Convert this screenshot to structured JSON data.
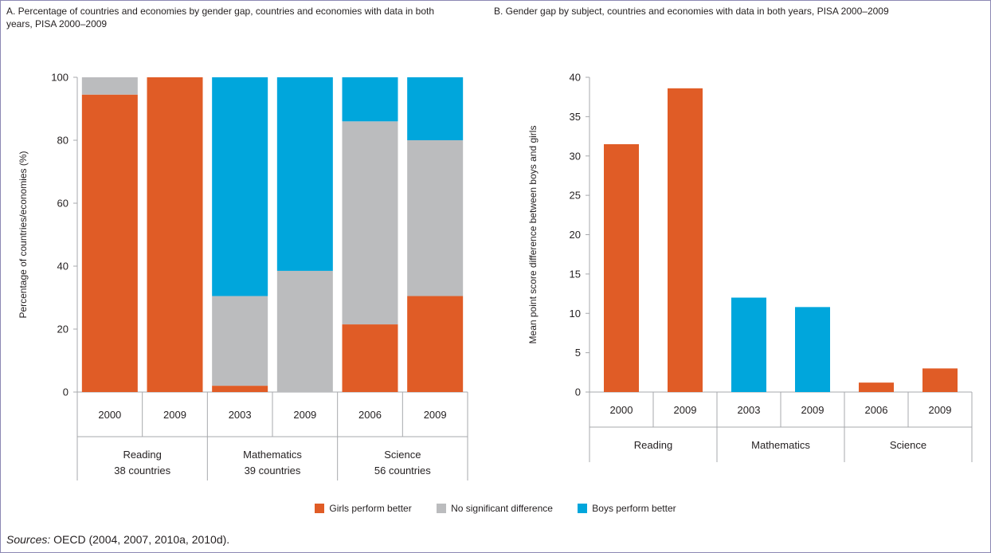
{
  "sources": {
    "label": "Sources:",
    "text": "OECD (2004, 2007, 2010a, 2010d)."
  },
  "colors": {
    "girls": "#e05c26",
    "none": "#bbbcbe",
    "boys": "#00a6dc"
  },
  "legend": [
    {
      "key": "girls",
      "label": "Girls perform better"
    },
    {
      "key": "none",
      "label": "No significant difference"
    },
    {
      "key": "boys",
      "label": "Boys perform better"
    }
  ],
  "chart_data": [
    {
      "type": "bar",
      "stacked": true,
      "title": "A. Percentage of countries and economies by gender gap, countries and economies with data in both years, PISA 2000–2009",
      "ylabel": "Percentage of countries/economies (%)",
      "ylim": [
        0,
        100
      ],
      "yticks": [
        0,
        20,
        40,
        60,
        80,
        100
      ],
      "categories": [
        "2000",
        "2009",
        "2003",
        "2009",
        "2006",
        "2009"
      ],
      "groups": [
        {
          "label": "Reading",
          "sublabel": "38 countries",
          "span": [
            0,
            1
          ]
        },
        {
          "label": "Mathematics",
          "sublabel": "39 countries",
          "span": [
            2,
            3
          ]
        },
        {
          "label": "Science",
          "sublabel": "56 countries",
          "span": [
            4,
            5
          ]
        }
      ],
      "series": [
        {
          "name": "Girls perform better",
          "color": "#e05c26",
          "values": [
            94.5,
            100,
            2,
            0,
            21.5,
            30.5
          ]
        },
        {
          "name": "No significant difference",
          "color": "#bbbcbe",
          "values": [
            5.5,
            0,
            28.5,
            38.5,
            64.5,
            49.5
          ]
        },
        {
          "name": "Boys perform better",
          "color": "#00a6dc",
          "values": [
            0,
            0,
            69.5,
            61.5,
            14,
            20
          ]
        }
      ]
    },
    {
      "type": "bar",
      "title": "B. Gender gap by subject, countries and economies with data in both years, PISA 2000–2009",
      "ylabel": "Mean point score difference between boys and girls",
      "ylim": [
        0,
        40
      ],
      "yticks": [
        0,
        5,
        10,
        15,
        20,
        25,
        30,
        35,
        40
      ],
      "categories": [
        "2000",
        "2009",
        "2003",
        "2009",
        "2006",
        "2009"
      ],
      "groups": [
        {
          "label": "Reading",
          "span": [
            0,
            1
          ]
        },
        {
          "label": "Mathematics",
          "span": [
            2,
            3
          ]
        },
        {
          "label": "Science",
          "span": [
            4,
            5
          ]
        }
      ],
      "values": [
        31.5,
        38.6,
        12,
        10.8,
        1.2,
        3
      ],
      "bar_series": [
        "Girls perform better",
        "Girls perform better",
        "Boys perform better",
        "Boys perform better",
        "Girls perform better",
        "Girls perform better"
      ]
    }
  ]
}
